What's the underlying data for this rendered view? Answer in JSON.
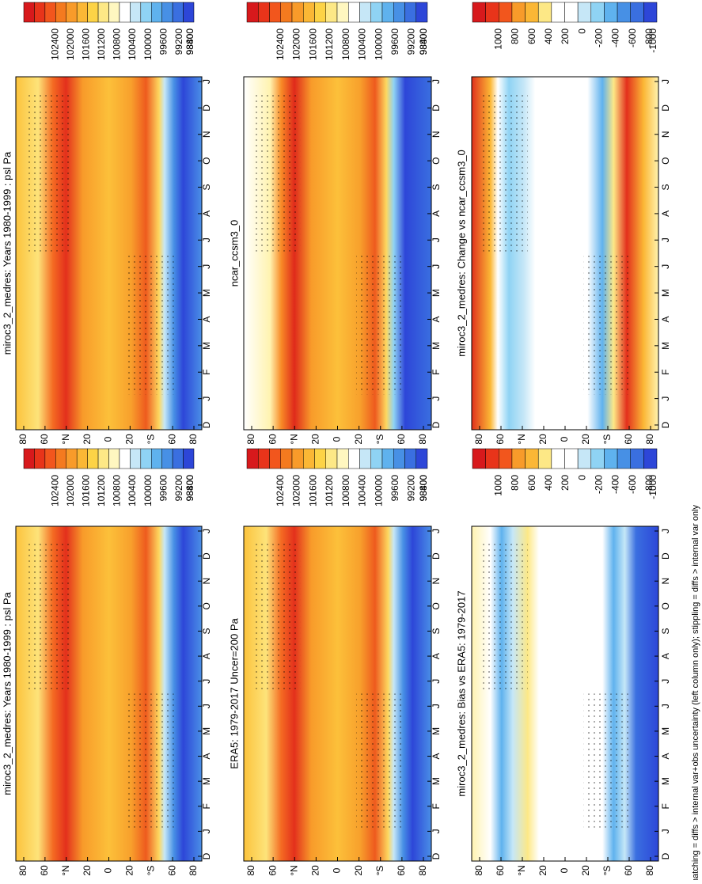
{
  "panels": [
    {
      "title": "miroc3_2_medres: Years 1980-1999 : psl Pa",
      "colorbar_labels": [
        "102400",
        "102000",
        "101600",
        "101200",
        "100800",
        "100400",
        "100000",
        "99600",
        "99200",
        "98800",
        "98400"
      ],
      "lat_labels": [
        "80",
        "60",
        "°N",
        "20",
        "0",
        "20",
        "°S",
        "60",
        "80"
      ],
      "month_labels": [
        "D",
        "J",
        "F",
        "M",
        "A",
        "M",
        "J",
        "J",
        "A",
        "S",
        "O",
        "N",
        "D",
        "J"
      ]
    },
    {
      "title": "miroc3_2_medres: Years 1980-1999 : psl Pa",
      "colorbar_labels": [
        "102400",
        "102000",
        "101600",
        "101200",
        "100800",
        "100400",
        "100000",
        "99600",
        "99200",
        "98800",
        "98400"
      ],
      "lat_labels": [
        "80",
        "60",
        "°N",
        "20",
        "0",
        "20",
        "°S",
        "60",
        "80"
      ],
      "month_labels": [
        "D",
        "J",
        "F",
        "M",
        "A",
        "M",
        "J",
        "J",
        "A",
        "S",
        "O",
        "N",
        "D",
        "J"
      ]
    },
    {
      "title": "ERA5: 1979-2017 Uncer=200 Pa",
      "colorbar_labels": [
        "102400",
        "102000",
        "101600",
        "101200",
        "100800",
        "100400",
        "100000",
        "99600",
        "99200",
        "98800",
        "98400"
      ],
      "lat_labels": [
        "80",
        "60",
        "°N",
        "20",
        "0",
        "20",
        "°S",
        "60",
        "80"
      ],
      "month_labels": [
        "D",
        "J",
        "F",
        "M",
        "A",
        "M",
        "J",
        "J",
        "A",
        "S",
        "O",
        "N",
        "D",
        "J"
      ]
    },
    {
      "title": "ncar_ccsm3_0",
      "colorbar_labels": [
        "102400",
        "102000",
        "101600",
        "101200",
        "100800",
        "100400",
        "100000",
        "99600",
        "99200",
        "98800",
        "98400"
      ],
      "lat_labels": [
        "80",
        "60",
        "°N",
        "20",
        "0",
        "20",
        "°S",
        "60",
        "80"
      ],
      "month_labels": [
        "D",
        "J",
        "F",
        "M",
        "A",
        "M",
        "J",
        "J",
        "A",
        "S",
        "O",
        "N",
        "D",
        "J"
      ]
    },
    {
      "title": "miroc3_2_medres: Bias vs ERA5: 1979-2017",
      "colorbar_labels": [
        "1000",
        "800",
        "600",
        "400",
        "200",
        "0",
        "-200",
        "-400",
        "-600",
        "-800",
        "-1000"
      ],
      "lat_labels": [
        "80",
        "60",
        "°N",
        "20",
        "0",
        "20",
        "°S",
        "60",
        "80"
      ],
      "month_labels": [
        "D",
        "J",
        "F",
        "M",
        "A",
        "M",
        "J",
        "J",
        "A",
        "S",
        "O",
        "N",
        "D",
        "J"
      ]
    },
    {
      "title": "miroc3_2_medres: Change vs ncar_ccsm3_0",
      "colorbar_labels": [
        "1000",
        "800",
        "600",
        "400",
        "200",
        "0",
        "-200",
        "-400",
        "-600",
        "-800",
        "-1000"
      ],
      "lat_labels": [
        "80",
        "60",
        "°N",
        "20",
        "0",
        "20",
        "°S",
        "60",
        "80"
      ],
      "month_labels": [
        "D",
        "J",
        "F",
        "M",
        "A",
        "M",
        "J",
        "J",
        "A",
        "S",
        "O",
        "N",
        "D",
        "J"
      ]
    }
  ],
  "footer": "hatching = diffs > internal var+obs uncertainty (left column only); stippling = diffs > internal var only"
}
